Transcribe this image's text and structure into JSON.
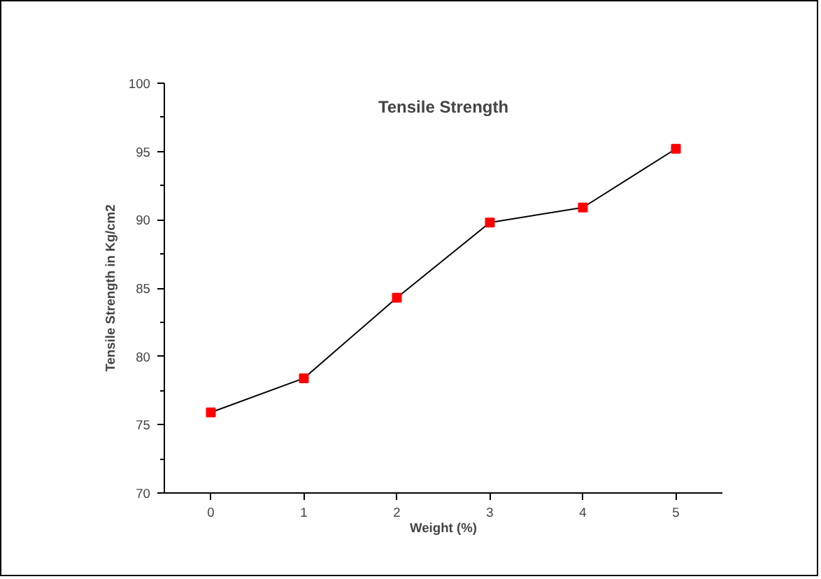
{
  "chart_data": {
    "type": "line",
    "title": "Tensile Strength",
    "xlabel": "Weight (%)",
    "ylabel": "Tensile Strength in Kg/cm2",
    "x": [
      0,
      1,
      2,
      3,
      4,
      5
    ],
    "series": [
      {
        "color": "#ff0000",
        "values": [
          75.9,
          78.4,
          84.3,
          89.8,
          90.9,
          95.2
        ]
      }
    ],
    "xlim": [
      -0.5,
      5.5
    ],
    "xticks": [
      0,
      1,
      2,
      3,
      4,
      5
    ],
    "ylim": [
      70,
      100
    ],
    "yticks": [
      70,
      75,
      80,
      85,
      90,
      95,
      100
    ],
    "grid": false,
    "marker": "square",
    "line_style": "solid"
  }
}
